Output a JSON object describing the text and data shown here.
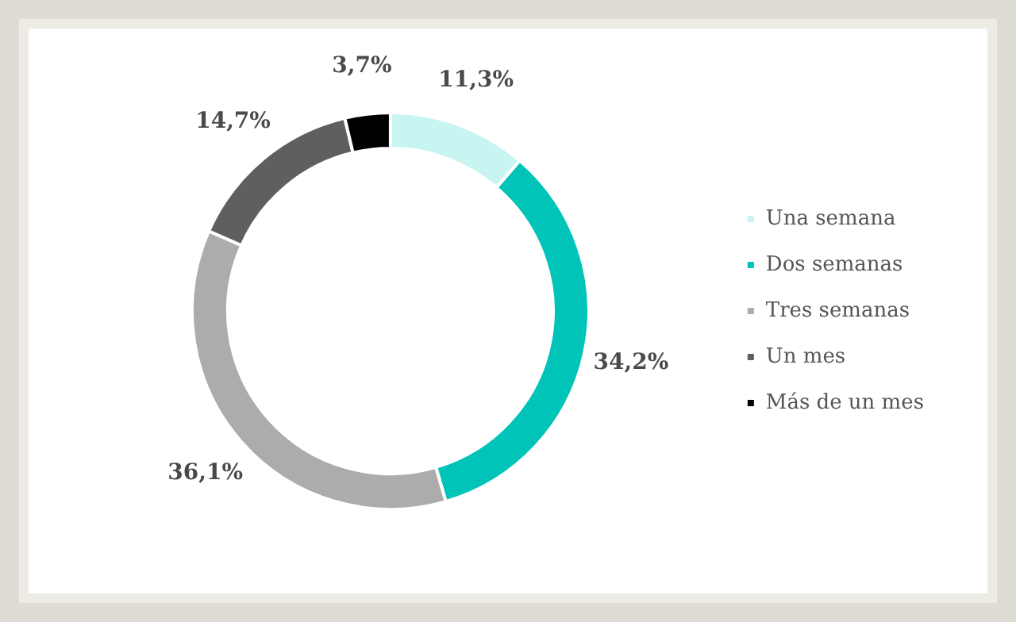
{
  "chart_data": {
    "type": "donut",
    "categories": [
      "Una semana",
      "Dos semanas",
      "Tres semanas",
      "Un mes",
      "Más de un mes"
    ],
    "values": [
      11.3,
      34.2,
      36.1,
      14.7,
      3.7
    ],
    "colors": [
      "#c8f5f2",
      "#00c4b8",
      "#acacac",
      "#5f5f5f",
      "#000000"
    ],
    "value_labels": [
      "11,3%",
      "34,2%",
      "36,1%",
      "14,7%",
      "3,7%"
    ],
    "legend": "right"
  }
}
